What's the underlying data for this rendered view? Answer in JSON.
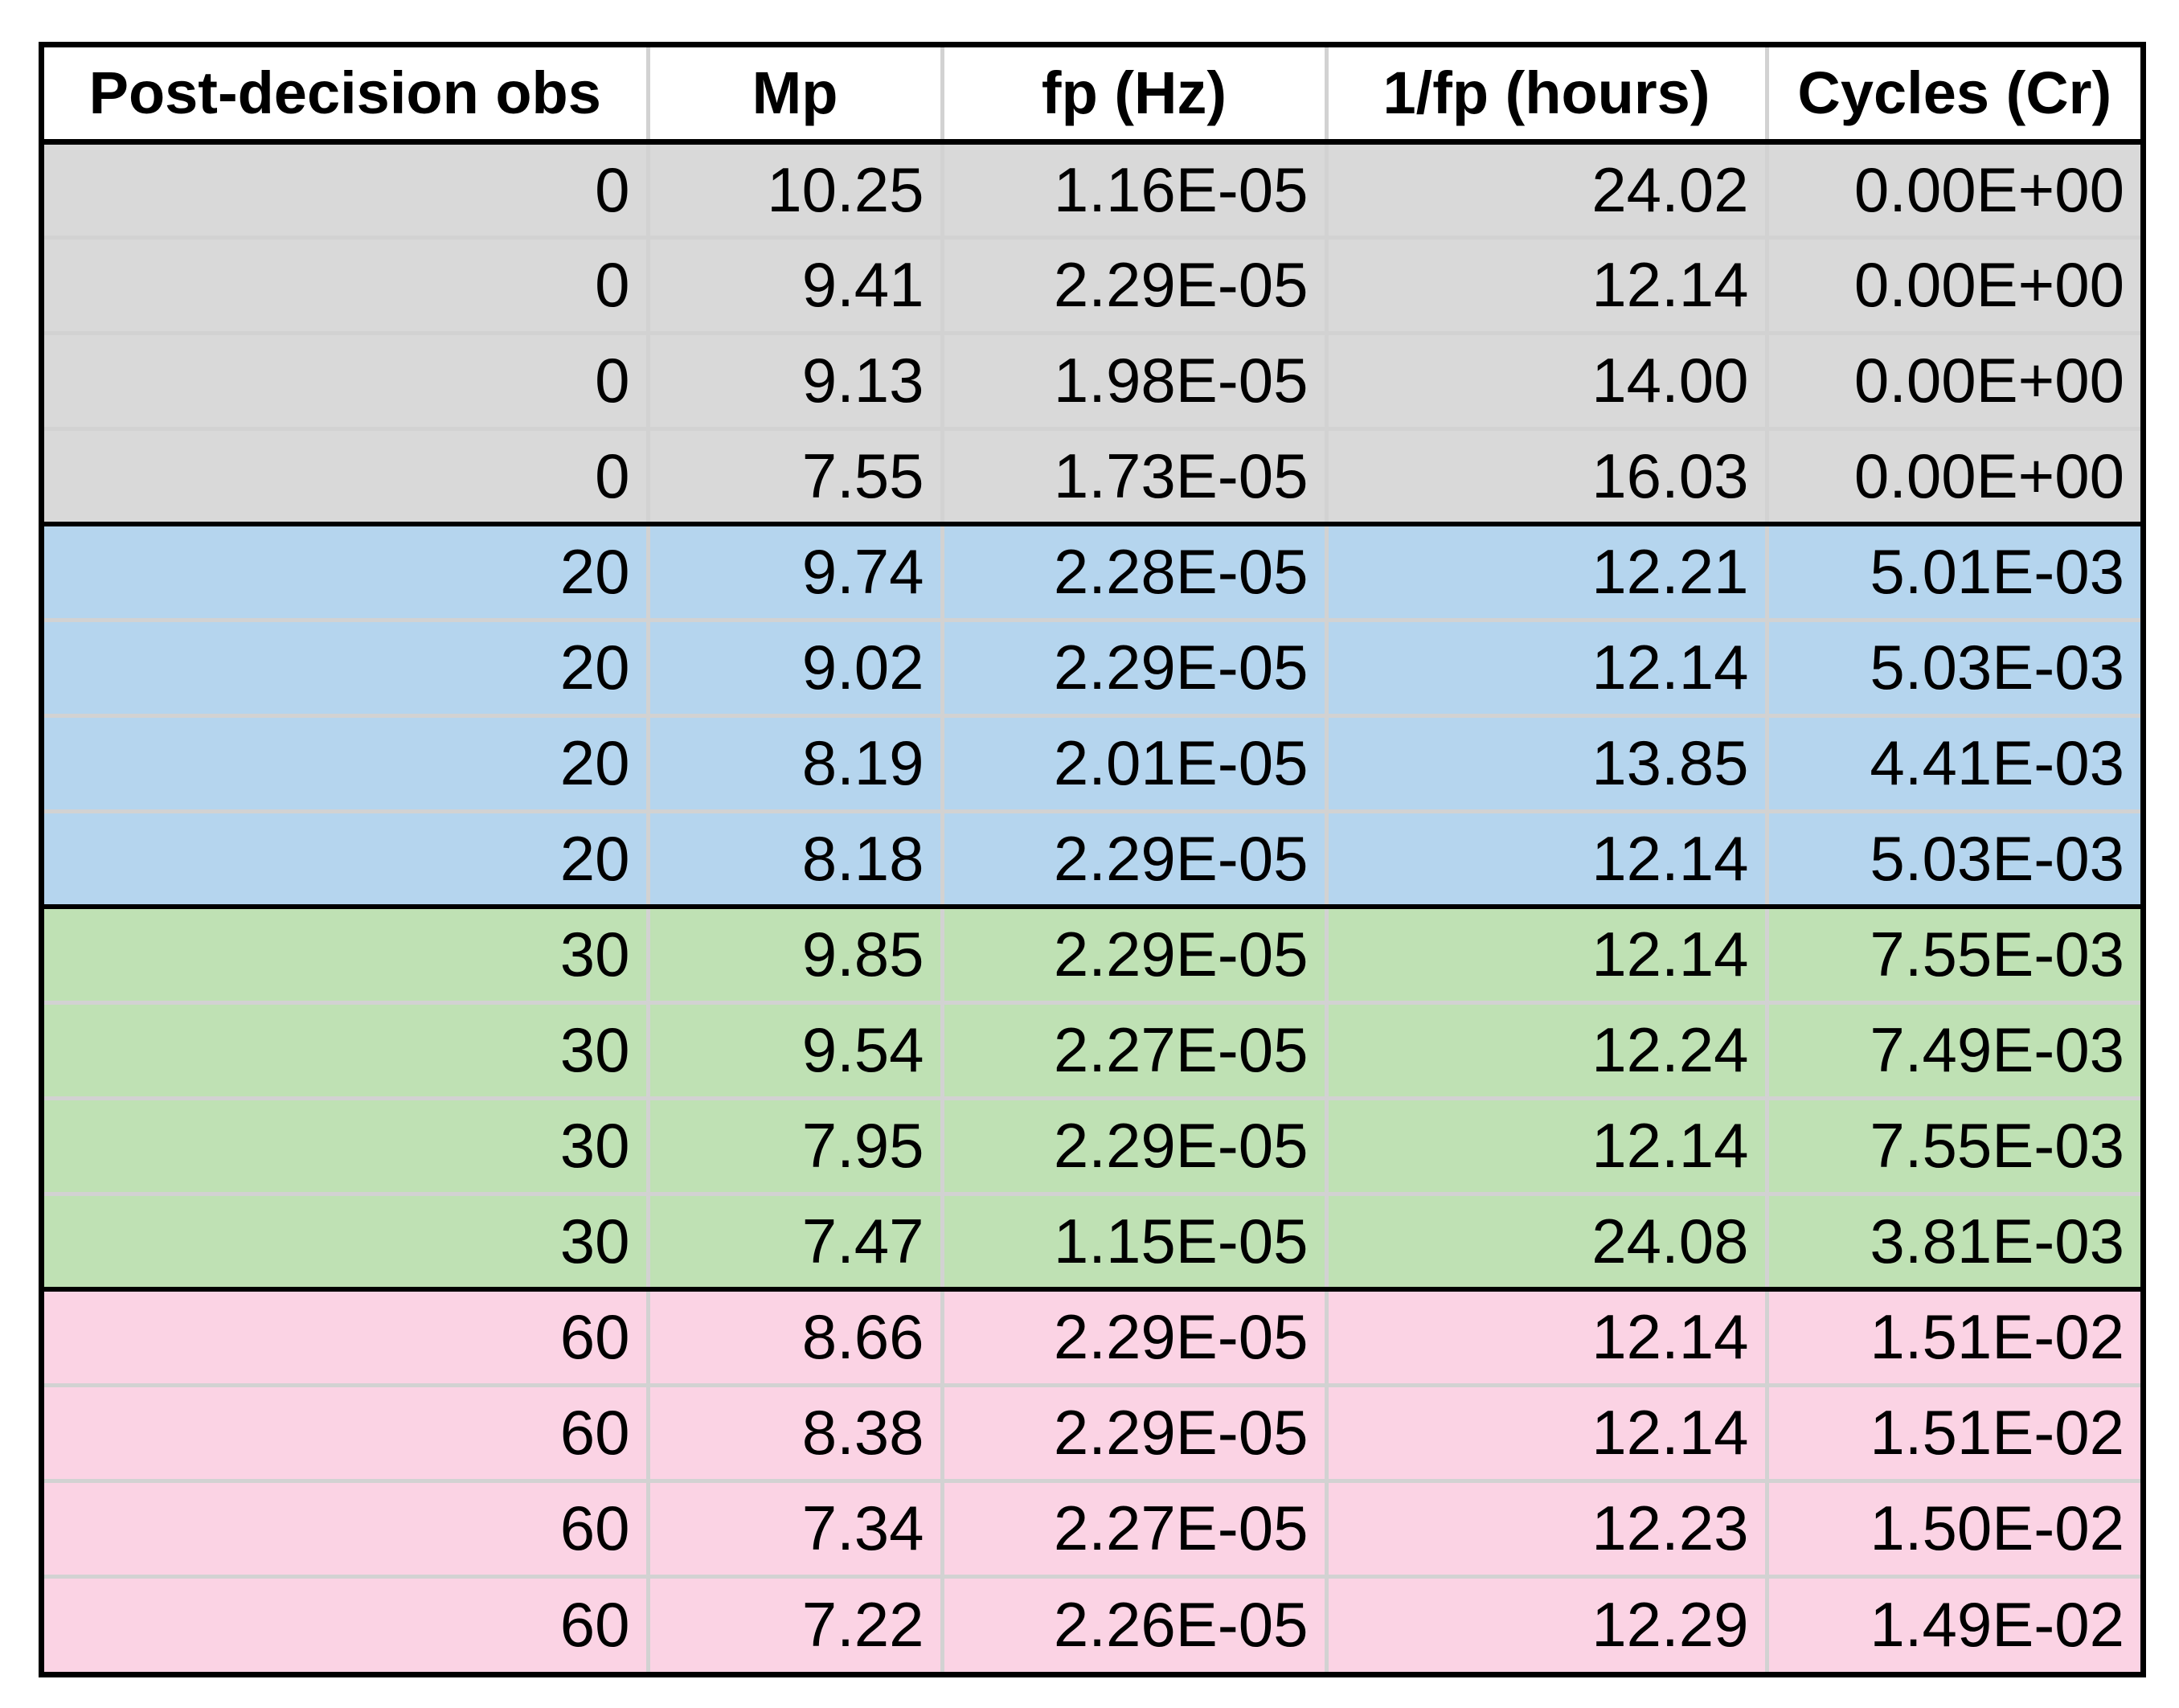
{
  "table": {
    "headers": [
      "Post-decision obs",
      "Mp",
      "fp (Hz)",
      "1/fp (hours)",
      "Cycles (Cr)"
    ],
    "groups": [
      {
        "color": "#d9d9d9",
        "rows": [
          [
            "0",
            "10.25",
            "1.16E-05",
            "24.02",
            "0.00E+00"
          ],
          [
            "0",
            "9.41",
            "2.29E-05",
            "12.14",
            "0.00E+00"
          ],
          [
            "0",
            "9.13",
            "1.98E-05",
            "14.00",
            "0.00E+00"
          ],
          [
            "0",
            "7.55",
            "1.73E-05",
            "16.03",
            "0.00E+00"
          ]
        ]
      },
      {
        "color": "#b5d5ee",
        "rows": [
          [
            "20",
            "9.74",
            "2.28E-05",
            "12.21",
            "5.01E-03"
          ],
          [
            "20",
            "9.02",
            "2.29E-05",
            "12.14",
            "5.03E-03"
          ],
          [
            "20",
            "8.19",
            "2.01E-05",
            "13.85",
            "4.41E-03"
          ],
          [
            "20",
            "8.18",
            "2.29E-05",
            "12.14",
            "5.03E-03"
          ]
        ]
      },
      {
        "color": "#bfe1b4",
        "rows": [
          [
            "30",
            "9.85",
            "2.29E-05",
            "12.14",
            "7.55E-03"
          ],
          [
            "30",
            "9.54",
            "2.27E-05",
            "12.24",
            "7.49E-03"
          ],
          [
            "30",
            "7.95",
            "2.29E-05",
            "12.14",
            "7.55E-03"
          ],
          [
            "30",
            "7.47",
            "1.15E-05",
            "24.08",
            "3.81E-03"
          ]
        ]
      },
      {
        "color": "#fbd3e4",
        "rows": [
          [
            "60",
            "8.66",
            "2.29E-05",
            "12.14",
            "1.51E-02"
          ],
          [
            "60",
            "8.38",
            "2.29E-05",
            "12.14",
            "1.51E-02"
          ],
          [
            "60",
            "7.34",
            "2.27E-05",
            "12.23",
            "1.50E-02"
          ],
          [
            "60",
            "7.22",
            "2.26E-05",
            "12.29",
            "1.49E-02"
          ]
        ]
      }
    ]
  }
}
